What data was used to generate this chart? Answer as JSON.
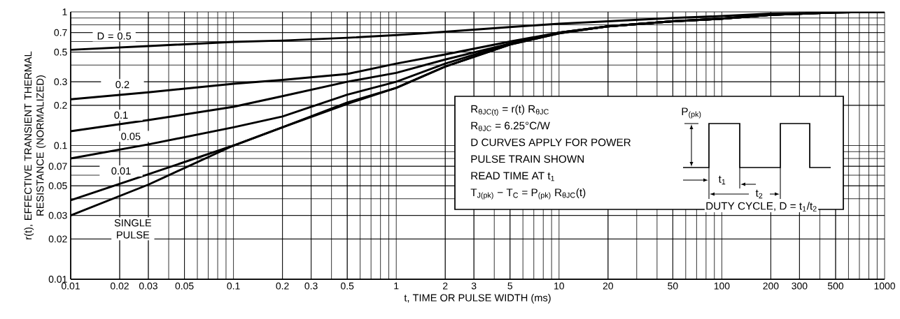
{
  "chart_data": {
    "type": "line",
    "xlabel": "t, TIME OR PULSE WIDTH (ms)",
    "ylabel": "r(t), EFFECTIVE TRANSIENT THERMAL RESISTANCE (NORMALIZED)",
    "log": "xy",
    "grid": true,
    "xlim": [
      0.01,
      1000
    ],
    "ylim": [
      0.01,
      1
    ],
    "xticks": [
      0.01,
      0.02,
      0.03,
      0.05,
      0.1,
      0.2,
      0.3,
      0.5,
      1,
      2,
      3,
      5,
      10,
      20,
      50,
      100,
      200,
      300,
      500,
      1000
    ],
    "yticks": [
      0.01,
      0.02,
      0.03,
      0.05,
      0.07,
      0.1,
      0.2,
      0.3,
      0.5,
      0.7,
      1
    ],
    "x": [
      0.01,
      0.03,
      0.1,
      0.2,
      0.5,
      1,
      2,
      5,
      10,
      20,
      50,
      100,
      200,
      500,
      1000
    ],
    "series": [
      {
        "name": "D = 0.5",
        "color": "#000000",
        "values": [
          0.52,
          0.555,
          0.596,
          0.61,
          0.64,
          0.67,
          0.71,
          0.77,
          0.815,
          0.85,
          0.9,
          0.93,
          0.97,
          0.99,
          1.0
        ]
      },
      {
        "name": "0.2",
        "color": "#000000",
        "values": [
          0.222,
          0.25,
          0.29,
          0.31,
          0.343,
          0.41,
          0.48,
          0.6,
          0.7,
          0.78,
          0.85,
          0.89,
          0.95,
          0.99,
          1.0
        ]
      },
      {
        "name": "0.1",
        "color": "#000000",
        "values": [
          0.128,
          0.155,
          0.195,
          0.234,
          0.3,
          0.35,
          0.44,
          0.58,
          0.7,
          0.78,
          0.85,
          0.89,
          0.95,
          0.99,
          1.0
        ]
      },
      {
        "name": "0.05",
        "color": "#000000",
        "values": [
          0.08,
          0.102,
          0.137,
          0.165,
          0.24,
          0.3,
          0.41,
          0.58,
          0.7,
          0.78,
          0.85,
          0.89,
          0.95,
          0.99,
          1.0
        ]
      },
      {
        "name": "0.01",
        "color": "#000000",
        "values": [
          0.039,
          0.061,
          0.1,
          0.137,
          0.21,
          0.27,
          0.39,
          0.57,
          0.69,
          0.78,
          0.85,
          0.89,
          0.95,
          0.99,
          1.0
        ]
      },
      {
        "name": "SINGLE PULSE",
        "color": "#000000",
        "values": [
          0.03,
          0.051,
          0.1,
          0.137,
          0.205,
          0.27,
          0.39,
          0.57,
          0.69,
          0.78,
          0.85,
          0.89,
          0.95,
          0.99,
          1.0
        ]
      }
    ],
    "annotations": [
      "R$_{θJC(t)}$ = r(t) R$_{θJC}$",
      "R$_{θJC}$ = 6.25°C/W",
      "D CURVES APPLY FOR POWER",
      "PULSE TRAIN SHOWN",
      "READ TIME AT t$_{1}$",
      "T$_{J(pk)}$ − T$_{C}$ = P$_{(pk)}$ R$_{θJC}$(t)",
      "P$_{(pk)}$",
      "t$_{1}$",
      "t$_{2}$",
      "DUTY CYCLE, D = t$_{1}$/t$_{2}$"
    ]
  }
}
